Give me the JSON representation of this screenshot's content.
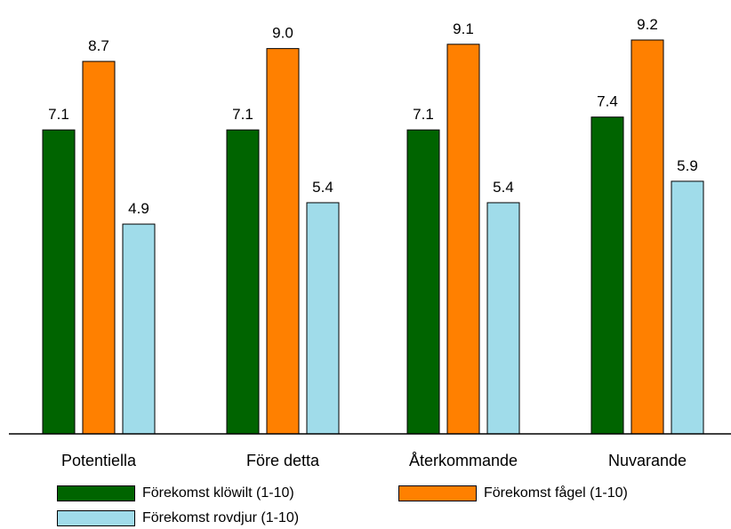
{
  "chart_data": {
    "type": "bar",
    "categories": [
      "Potentiella",
      "Före detta",
      "Återkommande",
      "Nuvarande"
    ],
    "series": [
      {
        "name": "Förekomst klöwilt (1-10)",
        "color": "#006400",
        "values": [
          7.1,
          7.1,
          7.1,
          7.4
        ]
      },
      {
        "name": "Förekomst fågel (1-10)",
        "color": "#ff8000",
        "values": [
          8.7,
          9.0,
          9.1,
          9.2
        ]
      },
      {
        "name": "Förekomst rovdjur (1-10)",
        "color": "#a0dcea",
        "values": [
          4.9,
          5.4,
          5.4,
          5.9
        ]
      }
    ],
    "data_labels": [
      [
        "7.1",
        "7.1",
        "7.1",
        "7.4"
      ],
      [
        "8.7",
        "9.0",
        "9.1",
        "9.2"
      ],
      [
        "4.9",
        "5.4",
        "5.4",
        "5.9"
      ]
    ],
    "ylim": [
      0,
      10
    ],
    "grid": false,
    "legend_position": "bottom"
  }
}
